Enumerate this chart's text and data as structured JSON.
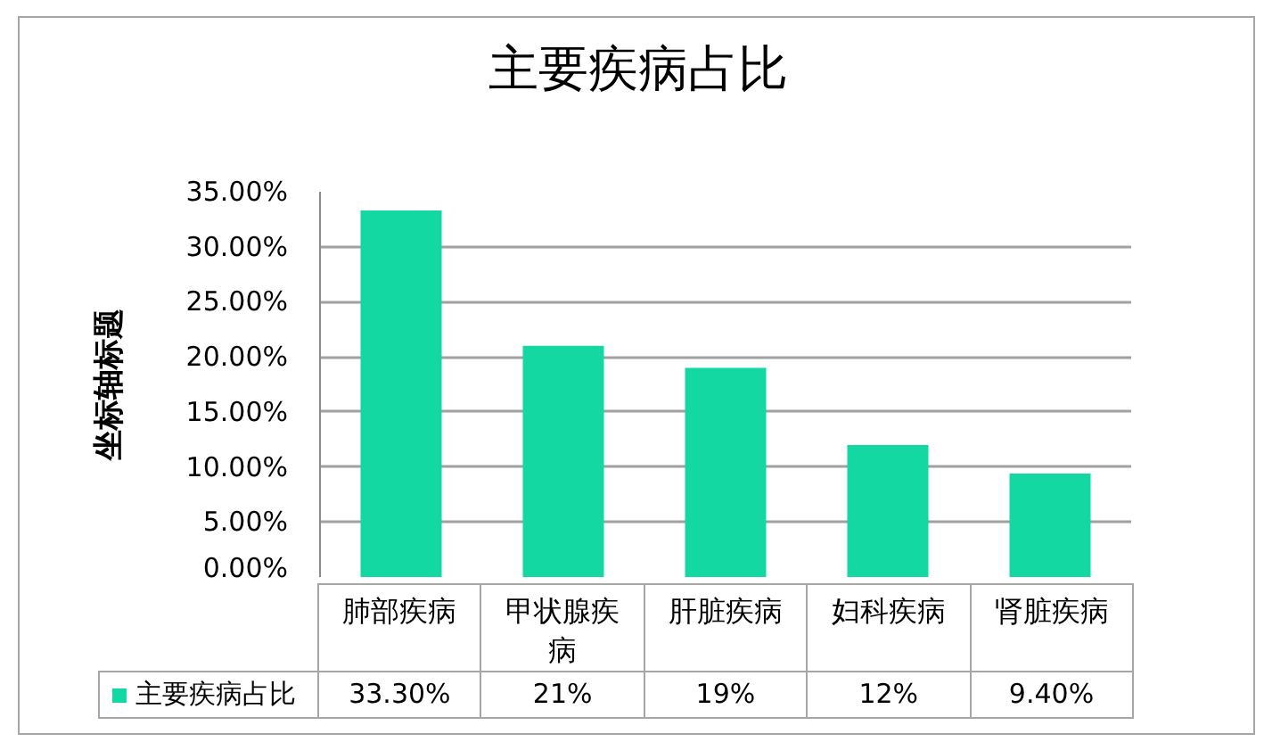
{
  "chart_data": {
    "type": "bar",
    "title": "主要疾病占比",
    "ylabel": "坐标轴标题",
    "categories": [
      "肺部疾病",
      "甲状腺疾病",
      "肝脏疾病",
      "妇科疾病",
      "肾脏疾病"
    ],
    "series": [
      {
        "name": "主要疾病占比",
        "color": "#13d8a2",
        "values": [
          33.3,
          21,
          19,
          12,
          9.4
        ],
        "value_labels": [
          "33.30%",
          "21%",
          "19%",
          "12%",
          "9.40%"
        ]
      }
    ],
    "ylim": [
      0,
      35
    ],
    "yticks": [
      {
        "value": 0,
        "label": "0.00%"
      },
      {
        "value": 5,
        "label": "5.00%"
      },
      {
        "value": 10,
        "label": "10.00%"
      },
      {
        "value": 15,
        "label": "15.00%"
      },
      {
        "value": 20,
        "label": "20.00%"
      },
      {
        "value": 25,
        "label": "25.00%"
      },
      {
        "value": 30,
        "label": "30.00%"
      },
      {
        "value": 35,
        "label": "35.00%"
      }
    ],
    "grid": "y",
    "legend": "bottom"
  }
}
